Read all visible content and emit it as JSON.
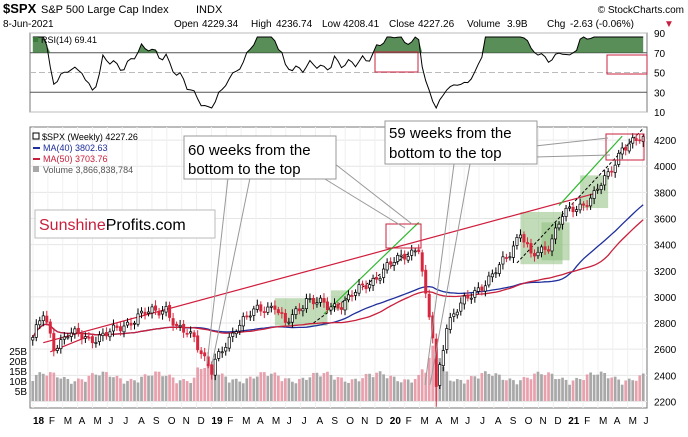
{
  "header": {
    "symbol": "$SPX",
    "name": "S&P 500 Large Cap Index",
    "exchange": "INDX",
    "watermark": "© StockCharts.com",
    "date": "8-Jun-2021",
    "open_label": "Open",
    "open_value": "4229.34",
    "high_label": "High",
    "high_value": "4236.74",
    "low_label": "Low",
    "low_value": "4208.41",
    "close_label": "Close",
    "close_value": "4227.26",
    "volume_label": "Volume",
    "volume_value": "3.9B",
    "chg_label": "Chg",
    "chg_value": "-2.63 (-0.06%)",
    "chg_marker": "▼"
  },
  "rsi_panel": {
    "legend": "RSI(14) 69.41",
    "levels": [
      "90",
      "70",
      "50",
      "30",
      "10"
    ],
    "ylim": [
      10,
      90
    ]
  },
  "legend": {
    "price": "$SPX (Weekly) 4227.26",
    "ma40": "MA(40) 3802.63",
    "ma50": "MA(50) 3703.76",
    "volume": "Volume 3,866,838,784"
  },
  "colors": {
    "up_candle": "#ffffff",
    "down_candle": "#d7263d",
    "ma40": "#1f2f9c",
    "ma50": "#c8203c",
    "trendline_red": "#d01c3c",
    "trendline_green": "#2eb82e",
    "highlight_box": "#8fbf7f",
    "rsi_fill": "#3c7a3c",
    "volume_up": "#a8a8a8",
    "volume_down": "#e8a0ad"
  },
  "callouts": {
    "left": "60 weeks from the bottom to the top",
    "right": "59 weeks from the bottom to the top"
  },
  "brand": {
    "part1": "Sunshine",
    "part2": "Profits.com"
  },
  "chart_data": {
    "type": "candlestick",
    "title": "$SPX S&P 500 Large Cap Index (Weekly)",
    "price_axis": {
      "ticks": [
        2200,
        2400,
        2600,
        2800,
        3000,
        3200,
        3400,
        3600,
        3800,
        4000,
        4200
      ],
      "ylim": [
        2150,
        4300
      ]
    },
    "volume_axis": {
      "ticks": [
        "5B",
        "10B",
        "15B",
        "20B",
        "25B"
      ],
      "ylim_billions": [
        0,
        30
      ]
    },
    "x_axis": {
      "labels": [
        "18",
        "F",
        "M",
        "A",
        "M",
        "J",
        "J",
        "A",
        "S",
        "O",
        "N",
        "D",
        "19",
        "F",
        "M",
        "A",
        "M",
        "J",
        "J",
        "A",
        "S",
        "O",
        "N",
        "D",
        "20",
        "F",
        "M",
        "A",
        "M",
        "J",
        "J",
        "A",
        "S",
        "O",
        "N",
        "D",
        "21",
        "F",
        "M",
        "A",
        "M",
        "J"
      ],
      "range": [
        "2018-01",
        "2021-06"
      ]
    },
    "weekly_close_anchors": [
      {
        "week": 0,
        "close": 2690
      },
      {
        "week": 3,
        "close": 2860
      },
      {
        "week": 6,
        "close": 2620
      },
      {
        "week": 10,
        "close": 2720
      },
      {
        "week": 16,
        "close": 2680
      },
      {
        "week": 22,
        "close": 2720
      },
      {
        "week": 30,
        "close": 2850
      },
      {
        "week": 38,
        "close": 2920
      },
      {
        "week": 41,
        "close": 2750
      },
      {
        "week": 46,
        "close": 2700
      },
      {
        "week": 51,
        "close": 2420
      },
      {
        "week": 52,
        "close": 2490
      },
      {
        "week": 58,
        "close": 2780
      },
      {
        "week": 64,
        "close": 2900
      },
      {
        "week": 69,
        "close": 2940
      },
      {
        "week": 72,
        "close": 2780
      },
      {
        "week": 78,
        "close": 2990
      },
      {
        "week": 84,
        "close": 2920
      },
      {
        "week": 88,
        "close": 2950
      },
      {
        "week": 93,
        "close": 3050
      },
      {
        "week": 100,
        "close": 3200
      },
      {
        "week": 106,
        "close": 3330
      },
      {
        "week": 110,
        "close": 3370
      },
      {
        "week": 112,
        "close": 2980
      },
      {
        "week": 114,
        "close": 2700
      },
      {
        "week": 115,
        "close": 2300
      },
      {
        "week": 116,
        "close": 2480
      },
      {
        "week": 118,
        "close": 2790
      },
      {
        "week": 122,
        "close": 2930
      },
      {
        "week": 126,
        "close": 3050
      },
      {
        "week": 131,
        "close": 3150
      },
      {
        "week": 136,
        "close": 3350
      },
      {
        "week": 139,
        "close": 3500
      },
      {
        "week": 142,
        "close": 3300
      },
      {
        "week": 147,
        "close": 3400
      },
      {
        "week": 151,
        "close": 3620
      },
      {
        "week": 156,
        "close": 3700
      },
      {
        "week": 160,
        "close": 3780
      },
      {
        "week": 164,
        "close": 3930
      },
      {
        "week": 168,
        "close": 4150
      },
      {
        "week": 172,
        "close": 4180
      },
      {
        "week": 174,
        "close": 4227
      }
    ],
    "annotations": [
      {
        "text": "60 weeks from the bottom to the top"
      },
      {
        "text": "59 weeks from the bottom to the top"
      }
    ]
  }
}
